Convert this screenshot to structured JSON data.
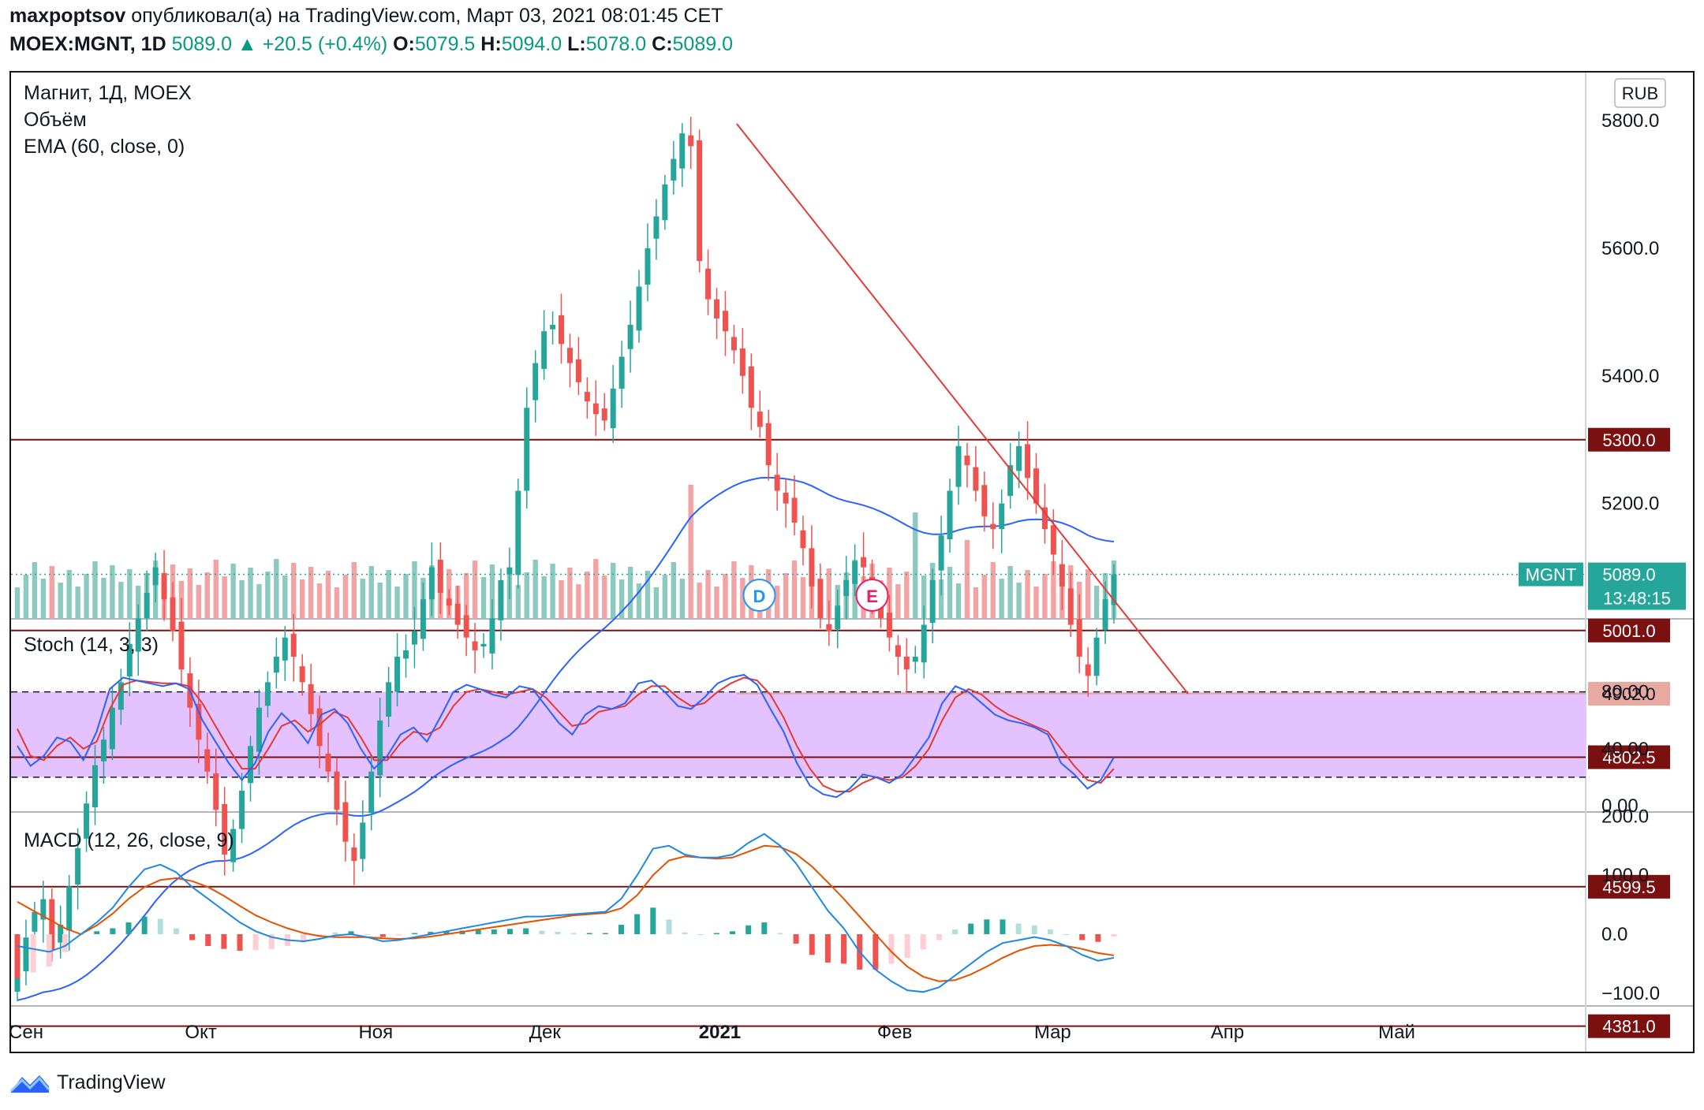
{
  "header": {
    "author": "maxpoptsov",
    "published_text": "опубликовал(а) на TradingView.com, Март 03, 2021 08:01:45 CET",
    "symbol": "MOEX:MGNT, 1D",
    "last": "5089.0",
    "change": "+20.5 (+0.4%)",
    "o_label": "O:",
    "o_value": "5079.5",
    "h_label": "H:",
    "h_value": "5094.0",
    "l_label": "L:",
    "l_value": "5078.0",
    "c_label": "C:",
    "c_value": "5089.0"
  },
  "legends": {
    "main_title": "Магнит, 1Д, MOEX",
    "volume": "Объём",
    "ema": "EMA (60, close, 0)",
    "stoch": "Stoch (14, 3, 3)",
    "macd": "MACD (12, 26, close, 9)"
  },
  "currency": "RUB",
  "footer": {
    "brand": "TradingView"
  },
  "colors": {
    "up": "#26a69a",
    "down": "#ef5350",
    "up_vol": "#8cc9bf",
    "down_vol": "#f2a3a3",
    "ema": "#2962ff",
    "level": "#7a1010",
    "trend": "#e53935",
    "stoch_bg": "#e4c1ff",
    "stoch_k": "#2962ff",
    "stoch_d": "#e53935",
    "macd_line": "#1e88e5",
    "signal_line": "#e65100"
  },
  "chart_data": [
    {
      "type": "candlestick",
      "title": "Магнит, 1Д, MOEX",
      "x_labels": [
        "Сен",
        "Окт",
        "Ноя",
        "Дек",
        "2021",
        "Фев",
        "Мар",
        "Апр",
        "Май"
      ],
      "y_ticks": [
        "5800.0",
        "5600.0",
        "5400.0",
        "5200.0"
      ],
      "ylim": [
        4380,
        5850
      ],
      "horizontal_levels": [
        {
          "value": 5300.0,
          "label": "5300.0"
        },
        {
          "value": 5001.0,
          "label": "5001.0"
        },
        {
          "value": 4802.5,
          "label": "4802.5"
        },
        {
          "value": 4599.5,
          "label": "4599.5"
        },
        {
          "value": 4381.0,
          "label": "4381.0"
        }
      ],
      "support_level": {
        "value": 4902.0,
        "label": "4902.0"
      },
      "last_price": {
        "symbol": "MGNT",
        "value": 5089.0,
        "label": "5089.0",
        "countdown": "13:48:15"
      },
      "trendline": {
        "from": [
          "2021-01-04",
          5795
        ],
        "to": [
          "2021-03-25",
          4902
        ]
      },
      "close_series": [
        4470,
        4520,
        4560,
        4580,
        4500,
        4540,
        4600,
        4660,
        4730,
        4790,
        4830,
        4880,
        4920,
        4980,
        5020,
        5060,
        5100,
        5050,
        5000,
        4940,
        4880,
        4830,
        4780,
        4720,
        4650,
        4690,
        4750,
        4820,
        4880,
        4920,
        4960,
        4990,
        4960,
        4920,
        4870,
        4820,
        4780,
        4720,
        4670,
        4640,
        4700,
        4780,
        4860,
        4920,
        4960,
        4970,
        5000,
        5050,
        5100,
        5060,
        5040,
        5010,
        4990,
        4970,
        4980,
        5020,
        5080,
        5100,
        5220,
        5350,
        5420,
        5470,
        5480,
        5450,
        5420,
        5390,
        5360,
        5340,
        5330,
        5380,
        5430,
        5480,
        5540,
        5600,
        5650,
        5700,
        5740,
        5780,
        5760,
        5580,
        5520,
        5490,
        5470,
        5440,
        5400,
        5350,
        5320,
        5260,
        5220,
        5200,
        5170,
        5130,
        5070,
        5020,
        5000,
        5040,
        5080,
        5110,
        5100,
        5060,
        5020,
        4990,
        4960,
        4940,
        4960,
        5010,
        5080,
        5150,
        5220,
        5290,
        5260,
        5220,
        5180,
        5160,
        5200,
        5260,
        5290,
        5240,
        5200,
        5160,
        5120,
        5070,
        5010,
        4960,
        4930,
        4990,
        5050,
        5089
      ],
      "volume": {
        "title": "Объём"
      },
      "ema": {
        "title": "EMA (60, close, 0)"
      }
    },
    {
      "type": "line",
      "title": "Stoch (14, 3, 3)",
      "y_ticks": [
        "80.00",
        "40.00",
        "0.00"
      ],
      "ylim": [
        0,
        100
      ],
      "band": [
        20,
        80
      ],
      "k_series": [
        42,
        28,
        35,
        48,
        45,
        32,
        52,
        82,
        90,
        88,
        86,
        84,
        86,
        82,
        60,
        45,
        30,
        18,
        30,
        52,
        65,
        56,
        44,
        64,
        68,
        58,
        40,
        26,
        35,
        50,
        55,
        45,
        62,
        80,
        85,
        82,
        78,
        76,
        84,
        82,
        70,
        58,
        50,
        64,
        70,
        68,
        72,
        86,
        88,
        80,
        70,
        68,
        76,
        86,
        90,
        92,
        85,
        68,
        52,
        30,
        14,
        8,
        6,
        12,
        22,
        20,
        16,
        22,
        35,
        48,
        72,
        84,
        80,
        72,
        64,
        60,
        58,
        55,
        50,
        30,
        22,
        12,
        18,
        34
      ],
      "d_series": [
        54,
        35,
        32,
        42,
        48,
        40,
        45,
        68,
        85,
        88,
        87,
        86,
        86,
        84,
        72,
        56,
        40,
        26,
        26,
        40,
        56,
        60,
        52,
        58,
        66,
        62,
        48,
        32,
        32,
        44,
        52,
        50,
        55,
        70,
        80,
        82,
        80,
        78,
        80,
        82,
        76,
        66,
        56,
        58,
        66,
        68,
        70,
        78,
        84,
        84,
        76,
        70,
        72,
        80,
        86,
        90,
        88,
        78,
        62,
        42,
        26,
        14,
        10,
        10,
        16,
        20,
        18,
        20,
        28,
        40,
        60,
        76,
        82,
        78,
        70,
        64,
        60,
        56,
        52,
        40,
        28,
        18,
        16,
        26
      ]
    },
    {
      "type": "line",
      "title": "MACD (12, 26, close, 9)",
      "y_ticks": [
        "200.0",
        "100.0",
        "0.0",
        "−100.0"
      ],
      "ylim": [
        -120,
        200
      ],
      "macd_series": [
        -20,
        -25,
        -30,
        -20,
        0,
        20,
        45,
        80,
        110,
        118,
        105,
        80,
        60,
        40,
        20,
        5,
        -5,
        -10,
        -12,
        -8,
        -2,
        0,
        -5,
        -12,
        -10,
        -5,
        0,
        5,
        10,
        15,
        20,
        25,
        30,
        30,
        32,
        34,
        36,
        38,
        60,
        100,
        145,
        150,
        135,
        130,
        130,
        135,
        155,
        170,
        150,
        120,
        80,
        40,
        10,
        -30,
        -60,
        -80,
        -95,
        -98,
        -90,
        -70,
        -50,
        -30,
        -15,
        -10,
        -5,
        -10,
        -20,
        -35,
        -45,
        -40
      ],
      "signal_series": [
        55,
        40,
        25,
        10,
        0,
        15,
        35,
        60,
        80,
        92,
        95,
        90,
        80,
        65,
        48,
        32,
        20,
        10,
        2,
        -3,
        -5,
        -5,
        -5,
        -7,
        -8,
        -7,
        -4,
        0,
        4,
        8,
        12,
        16,
        20,
        24,
        28,
        32,
        34,
        36,
        44,
        66,
        100,
        125,
        132,
        130,
        128,
        130,
        140,
        150,
        148,
        136,
        115,
        88,
        60,
        30,
        0,
        -30,
        -55,
        -72,
        -80,
        -78,
        -68,
        -55,
        -40,
        -28,
        -20,
        -18,
        -20,
        -25,
        -32,
        -36
      ]
    }
  ]
}
